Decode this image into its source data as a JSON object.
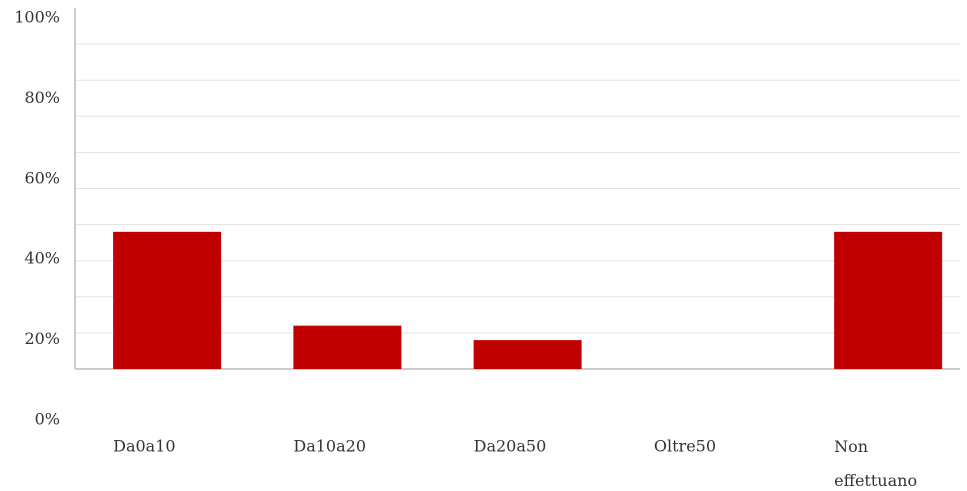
{
  "chart_data": {
    "type": "bar",
    "categories": [
      "Da0a10",
      "Da10a20",
      "Da20a50",
      "Oltre50",
      "Non effettuano"
    ],
    "values": [
      38,
      12,
      8,
      0,
      38
    ],
    "color": "#c00000",
    "ylim": [
      0,
      100
    ],
    "yticks": [
      {
        "value": 0,
        "label": "0%"
      },
      {
        "value": 20,
        "label": "20%"
      },
      {
        "value": 40,
        "label": "40%"
      },
      {
        "value": 60,
        "label": "60%"
      },
      {
        "value": 80,
        "label": "80%"
      },
      {
        "value": 100,
        "label": "100%"
      }
    ],
    "grid": true
  }
}
